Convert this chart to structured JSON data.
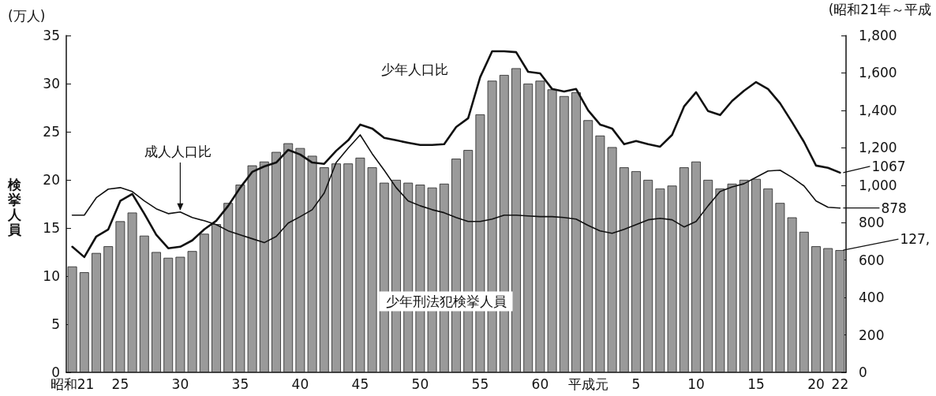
{
  "chart_data": {
    "type": "bar",
    "ylabel": "検挙人員",
    "annotations": [
      "(万人)",
      "(昭和21年～平成",
      {
        "text": "127,",
        "x": "22",
        "y": 12.7
      }
    ],
    "categories": [
      "昭和21",
      null,
      null,
      null,
      "25",
      null,
      null,
      null,
      null,
      "30",
      null,
      null,
      null,
      null,
      "35",
      null,
      null,
      null,
      null,
      "40",
      null,
      null,
      null,
      null,
      "45",
      null,
      null,
      null,
      null,
      "50",
      null,
      null,
      null,
      null,
      "55",
      null,
      null,
      null,
      null,
      "60",
      null,
      null,
      null,
      "平成元",
      null,
      null,
      null,
      "5",
      null,
      null,
      null,
      null,
      "10",
      null,
      null,
      null,
      null,
      "15",
      null,
      null,
      null,
      null,
      "20",
      null,
      "22"
    ],
    "series": [
      {
        "name": "少年刑法犯検挙人員",
        "color": "#9a9a9a",
        "values": [
          11.0,
          10.4,
          12.4,
          13.1,
          15.7,
          16.6,
          14.2,
          12.5,
          11.9,
          12.0,
          12.6,
          14.4,
          15.4,
          17.6,
          19.5,
          21.5,
          21.9,
          22.9,
          23.8,
          23.3,
          22.5,
          21.3,
          21.7,
          21.7,
          22.3,
          21.3,
          19.7,
          20.0,
          19.7,
          19.5,
          19.2,
          19.6,
          22.2,
          23.1,
          26.8,
          30.3,
          30.9,
          31.6,
          30.0,
          30.3,
          29.4,
          28.7,
          29.1,
          26.2,
          24.6,
          23.4,
          21.3,
          20.9,
          20.0,
          19.1,
          19.4,
          21.3,
          21.9,
          20.0,
          19.1,
          19.6,
          20.0,
          20.1,
          19.1,
          17.6,
          16.1,
          14.6,
          13.1,
          12.9,
          12.7
        ]
      },
      {
        "name": "少年人口比",
        "type": "line",
        "axis": "y2",
        "color": "#111111",
        "values": [
          671,
          616,
          726,
          764,
          916,
          953,
          848,
          735,
          663,
          671,
          705,
          764,
          810,
          890,
          987,
          1071,
          1100,
          1121,
          1189,
          1164,
          1121,
          1114,
          1184,
          1240,
          1324,
          1303,
          1253,
          1240,
          1227,
          1215,
          1215,
          1219,
          1311,
          1358,
          1577,
          1716,
          1716,
          1711,
          1606,
          1598,
          1514,
          1501,
          1514,
          1400,
          1324,
          1303,
          1219,
          1236,
          1219,
          1206,
          1269,
          1421,
          1497,
          1396,
          1375,
          1450,
          1505,
          1551,
          1514,
          1438,
          1337,
          1231,
          1105,
          1093,
          1067
        ],
        "value_labels": [
          null,
          null,
          null,
          null,
          null,
          null,
          null,
          null,
          null,
          null,
          null,
          null,
          null,
          null,
          null,
          null,
          null,
          null,
          null,
          null,
          null,
          null,
          null,
          null,
          null,
          null,
          null,
          null,
          null,
          null,
          null,
          null,
          null,
          null,
          null,
          null,
          null,
          null,
          null,
          null,
          null,
          null,
          null,
          null,
          null,
          null,
          null,
          null,
          null,
          null,
          null,
          null,
          null,
          null,
          null,
          null,
          null,
          null,
          null,
          null,
          null,
          null,
          null,
          null,
          "1067"
        ]
      },
      {
        "name": "成人人口比",
        "type": "line",
        "axis": "y2",
        "color": "#111111",
        "values": [
          840,
          840,
          933,
          979,
          987,
          966,
          916,
          874,
          848,
          857,
          827,
          810,
          789,
          756,
          735,
          714,
          693,
          726,
          798,
          832,
          869,
          958,
          1121,
          1198,
          1269,
          1168,
          1080,
          987,
          916,
          890,
          869,
          853,
          827,
          806,
          806,
          819,
          840,
          840,
          836,
          832,
          832,
          827,
          819,
          785,
          756,
          743,
          764,
          789,
          815,
          823,
          815,
          777,
          806,
          890,
          966,
          991,
          1008,
          1042,
          1076,
          1080,
          1042,
          996,
          916,
          882,
          878
        ],
        "value_labels": [
          null,
          null,
          null,
          null,
          null,
          null,
          null,
          null,
          null,
          null,
          null,
          null,
          null,
          null,
          null,
          null,
          null,
          null,
          null,
          null,
          null,
          null,
          null,
          null,
          null,
          null,
          null,
          null,
          null,
          null,
          null,
          null,
          null,
          null,
          null,
          null,
          null,
          null,
          null,
          null,
          null,
          null,
          null,
          null,
          null,
          null,
          null,
          null,
          null,
          null,
          null,
          null,
          null,
          null,
          null,
          null,
          null,
          null,
          null,
          null,
          null,
          null,
          null,
          null,
          "878"
        ]
      }
    ],
    "ylim": [
      0,
      35
    ],
    "yticks": [
      0,
      5,
      10,
      15,
      20,
      25,
      30,
      35
    ],
    "y2lim": [
      0,
      1800
    ],
    "y2ticks": [
      0,
      200,
      400,
      600,
      800,
      {
        "value": 1000,
        "label": "1,000"
      },
      {
        "value": 1200,
        "label": "1,200"
      },
      {
        "value": 1400,
        "label": "1,400"
      },
      {
        "value": 1600,
        "label": "1,600"
      },
      {
        "value": 1800,
        "label": "1,800"
      }
    ],
    "grid": false,
    "legend": false,
    "marker": "none",
    "line_style": "solid"
  }
}
